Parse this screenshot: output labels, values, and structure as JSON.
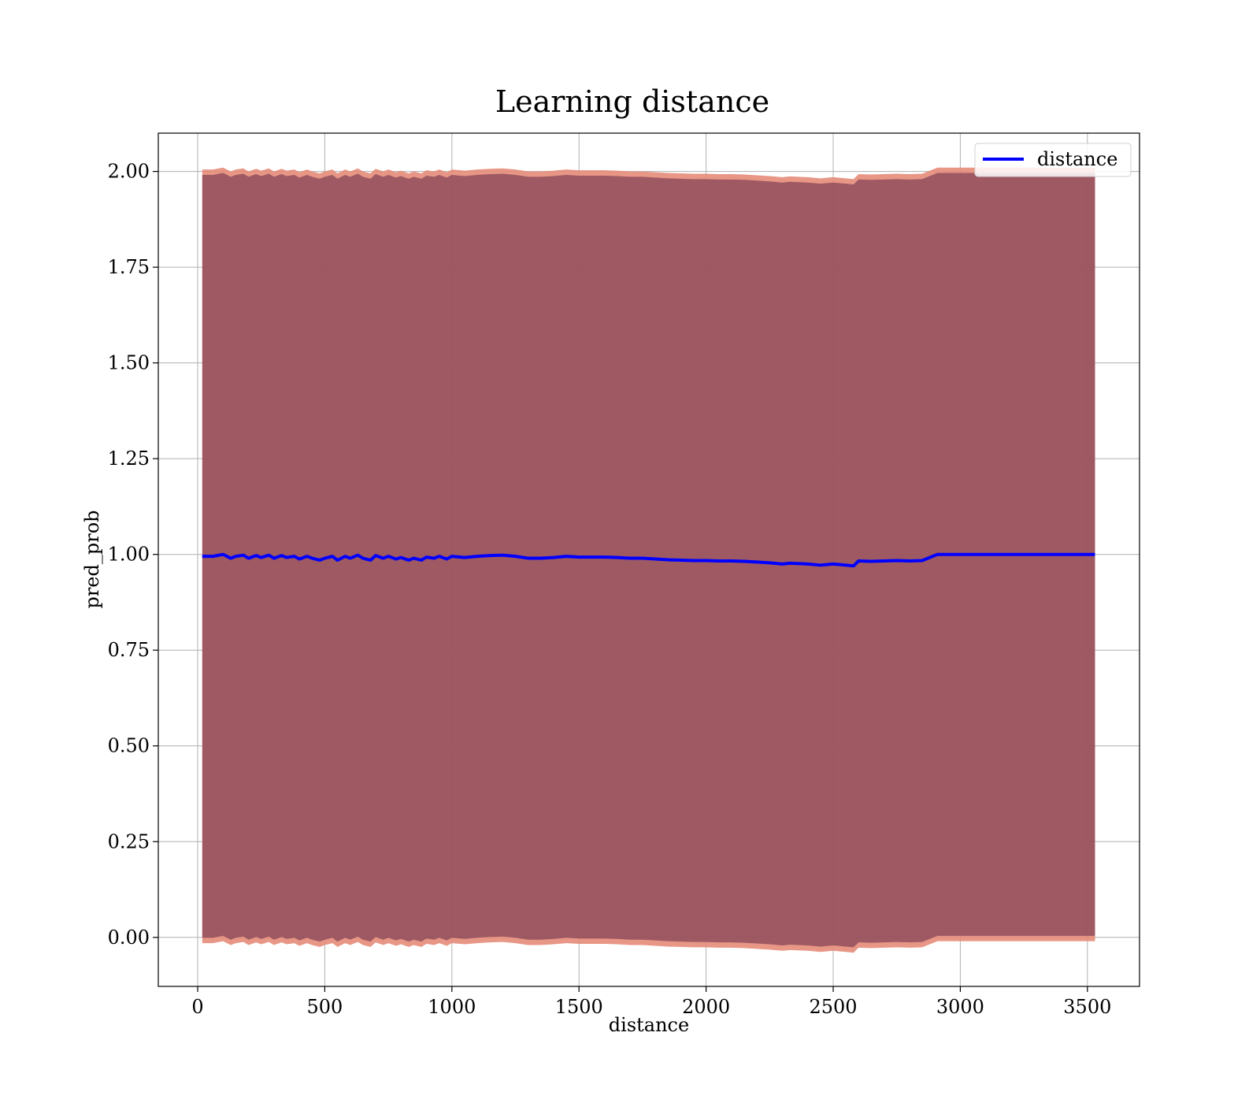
{
  "chart_data": {
    "type": "line",
    "title": "Learning distance",
    "xlabel": "distance",
    "ylabel": "pred_prob",
    "xlim": [
      -155,
      3705
    ],
    "ylim": [
      -0.128,
      2.1
    ],
    "grid": true,
    "legend_position": "top-right",
    "x_ticks": [
      0,
      500,
      1000,
      1500,
      2000,
      2500,
      3000,
      3500
    ],
    "x_tick_labels": [
      "0",
      "500",
      "1000",
      "1500",
      "2000",
      "2500",
      "3000",
      "3500"
    ],
    "y_ticks": [
      0.0,
      0.25,
      0.5,
      0.75,
      1.0,
      1.25,
      1.5,
      1.75,
      2.0
    ],
    "y_tick_labels": [
      "0.00",
      "0.25",
      "0.50",
      "0.75",
      "1.00",
      "1.25",
      "1.50",
      "1.75",
      "2.00"
    ],
    "series": [
      {
        "name": "distance",
        "color": "#0000ff",
        "x": [
          18,
          60,
          100,
          130,
          150,
          180,
          200,
          230,
          250,
          280,
          300,
          330,
          350,
          380,
          400,
          430,
          450,
          480,
          500,
          530,
          550,
          580,
          600,
          630,
          650,
          680,
          700,
          730,
          750,
          780,
          800,
          830,
          850,
          880,
          900,
          930,
          950,
          980,
          1000,
          1050,
          1100,
          1150,
          1200,
          1250,
          1300,
          1350,
          1400,
          1450,
          1500,
          1550,
          1600,
          1650,
          1700,
          1750,
          1800,
          1850,
          1900,
          1950,
          2000,
          2050,
          2100,
          2150,
          2200,
          2250,
          2300,
          2330,
          2400,
          2450,
          2500,
          2550,
          2580,
          2600,
          2650,
          2700,
          2750,
          2800,
          2850,
          2910,
          3000,
          3100,
          3200,
          3300,
          3400,
          3530
        ],
        "y": [
          0.995,
          0.995,
          1.0,
          0.99,
          0.995,
          0.998,
          0.99,
          0.997,
          0.992,
          0.998,
          0.99,
          0.997,
          0.992,
          0.995,
          0.988,
          0.995,
          0.99,
          0.985,
          0.99,
          0.995,
          0.985,
          0.995,
          0.99,
          0.998,
          0.99,
          0.985,
          0.997,
          0.99,
          0.995,
          0.988,
          0.992,
          0.985,
          0.99,
          0.985,
          0.993,
          0.99,
          0.995,
          0.988,
          0.995,
          0.992,
          0.995,
          0.997,
          0.998,
          0.995,
          0.99,
          0.99,
          0.992,
          0.995,
          0.993,
          0.993,
          0.993,
          0.992,
          0.99,
          0.99,
          0.988,
          0.986,
          0.985,
          0.984,
          0.984,
          0.983,
          0.983,
          0.982,
          0.98,
          0.978,
          0.975,
          0.977,
          0.975,
          0.972,
          0.975,
          0.972,
          0.97,
          0.983,
          0.982,
          0.983,
          0.984,
          0.983,
          0.984,
          1.0,
          1.0,
          1.0,
          1.0,
          1.0,
          1.0,
          1.0
        ]
      }
    ],
    "bands": [
      {
        "color": "#8b4a5a",
        "edge_color": "#e58b78",
        "offset": 1.0
      }
    ]
  }
}
